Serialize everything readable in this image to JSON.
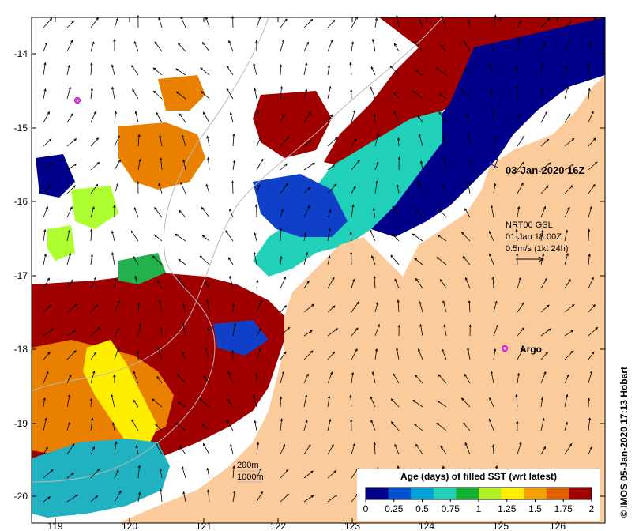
{
  "map": {
    "x_ticks": [
      "119",
      "120",
      "121",
      "122",
      "123",
      "124",
      "125",
      "126"
    ],
    "y_ticks": [
      "-14",
      "-15",
      "-16",
      "-17",
      "-18",
      "-19",
      "-20"
    ],
    "colors": {
      "land": "#fccb9b",
      "ocean_blank": "#ffffff",
      "age_0": "#00008b",
      "age_025": "#1040c8",
      "age_05": "#20b2c0",
      "age_075": "#20d0b8",
      "age_1": "#22b14c",
      "age_125": "#adff2f",
      "age_15": "#ffee00",
      "age_175": "#e98000",
      "age_2": "#a00000"
    }
  },
  "annotations": {
    "timestamp": "03-Jan-2020 16Z",
    "argo_label": "Argo",
    "current_source": "NRT00 GSL",
    "current_time": "01-Jan 18:00Z",
    "current_scale": "0.5m/s (1kt 24h)",
    "depth_200": "200m",
    "depth_1000": "1000m"
  },
  "colorbar": {
    "title": "Age (days) of filled SST (wrt latest)",
    "ticks": [
      "0",
      "0.25",
      "0.5",
      "0.75",
      "1",
      "1.25",
      "1.5",
      "1.75",
      "2"
    ],
    "colors": [
      "#00008b",
      "#0050d0",
      "#00a0d8",
      "#20d0b8",
      "#10b030",
      "#b0f020",
      "#ffee00",
      "#f0a000",
      "#e06000",
      "#a00000"
    ]
  },
  "credit": "© IMOS 05-Jan-2020 17:13 Hobart"
}
